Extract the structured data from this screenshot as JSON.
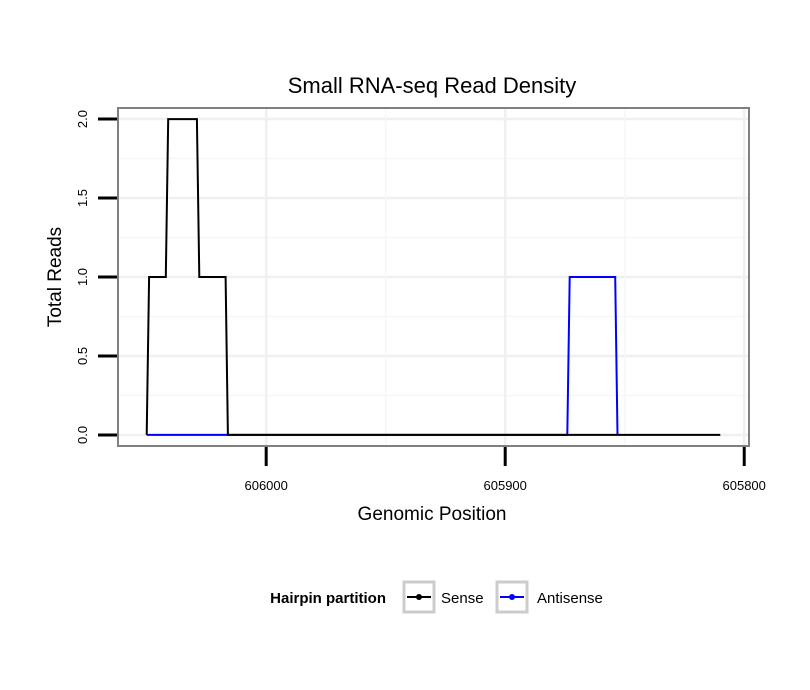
{
  "chart_data": {
    "type": "line",
    "title": "Small RNA-seq Read Density",
    "xlabel": "Genomic Position",
    "ylabel": "Total Reads",
    "x_reversed": true,
    "xlim": [
      606062,
      605798
    ],
    "ylim": [
      -0.07,
      2.07
    ],
    "x_ticks": [
      606000,
      605900,
      605800
    ],
    "x_tick_labels": [
      "606000",
      "605900",
      "605800"
    ],
    "y_ticks": [
      0,
      0.5,
      1,
      1.5,
      2
    ],
    "y_tick_labels": [
      "0.0",
      "0.5",
      "1.0",
      "1.5",
      "2.0"
    ],
    "grid": true,
    "legend_title": "Hairpin partition",
    "legend_position": "bottom",
    "series": [
      {
        "name": "Sense",
        "color": "#000000",
        "x": [
          606050,
          606049,
          606042,
          606041,
          606029,
          606028,
          606017,
          606016,
          606011,
          605810
        ],
        "y": [
          0,
          1,
          1,
          2,
          2,
          1,
          1,
          0,
          0,
          0
        ]
      },
      {
        "name": "Antisense",
        "color": "#0000ff",
        "x": [
          606050,
          605874,
          605873,
          605854,
          605853
        ],
        "y": [
          0,
          0,
          1,
          1,
          0
        ]
      }
    ]
  }
}
